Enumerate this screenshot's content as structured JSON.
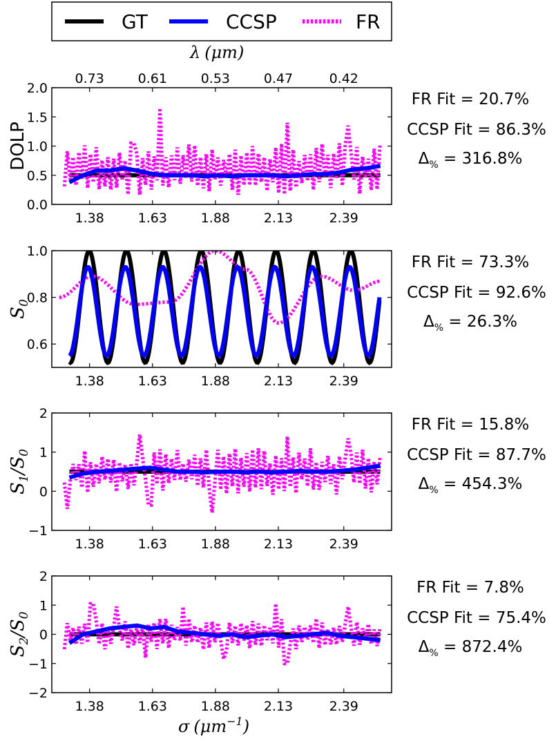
{
  "legend": {
    "items": [
      {
        "label": "GT",
        "color": "#000000",
        "style": "solid"
      },
      {
        "label": "CCSP",
        "color": "#0000ff",
        "style": "solid"
      },
      {
        "label": "FR",
        "color": "#ff00ff",
        "style": "dotted"
      }
    ]
  },
  "top_axis": {
    "label_symbol": "λ",
    "label_unit": "(μm)",
    "ticks": [
      "0.73",
      "0.61",
      "0.53",
      "0.47",
      "0.42"
    ]
  },
  "bottom_axis": {
    "label_symbol": "σ",
    "label_unit": "(μm",
    "label_exp": "−1",
    "label_close": ")"
  },
  "chart_data": [
    {
      "type": "line",
      "id": "dolp",
      "ylabel": "DOLP",
      "ylim": [
        0,
        2
      ],
      "yticks": [
        "0.0",
        "0.5",
        "1.0",
        "1.5",
        "2.0"
      ],
      "xlim": [
        1.23,
        2.58
      ],
      "xticks": [
        1.38,
        1.63,
        1.88,
        2.13,
        2.39
      ],
      "xtick_labels": [
        "1.38",
        "1.63",
        "1.88",
        "2.13",
        "2.39"
      ],
      "gt": {
        "type": "const",
        "value": 0.5
      },
      "ccsp": {
        "type": "flat",
        "values": [
          0.38,
          0.5,
          0.58,
          0.58,
          0.62,
          0.58,
          0.53,
          0.5,
          0.5,
          0.5,
          0.48,
          0.5,
          0.48,
          0.5,
          0.5,
          0.5,
          0.48,
          0.5,
          0.52,
          0.52,
          0.55,
          0.6,
          0.62,
          0.66
        ]
      },
      "fr": {
        "type": "noisy",
        "center": 0.6,
        "amp": 0.45,
        "bursts": [
          [
            1.55,
            1.05
          ],
          [
            1.66,
            1.65
          ],
          [
            2.17,
            1.4
          ],
          [
            2.41,
            1.35
          ]
        ]
      },
      "annotations": {
        "fr_fit": "FR Fit = 20.7%",
        "ccsp_fit": "CCSP Fit = 86.3%",
        "delta_symbol": "Δ",
        "delta_sub": "%",
        "delta_value": " = 316.8%"
      }
    },
    {
      "type": "line",
      "id": "s0",
      "ylabel_main": "S",
      "ylabel_sub": "0",
      "ylim": [
        0.5,
        1.0
      ],
      "yticks": [
        "0.6",
        "0.8",
        "1.0"
      ],
      "ytick_values": [
        0.6,
        0.8,
        1.0
      ],
      "xlim": [
        1.23,
        2.58
      ],
      "xticks": [
        1.38,
        1.63,
        1.88,
        2.13,
        2.39
      ],
      "xtick_labels": [
        "1.38",
        "1.63",
        "1.88",
        "2.13",
        "2.39"
      ],
      "gt": {
        "type": "osc",
        "mean": 0.76,
        "amp": 0.24,
        "period": 0.1485,
        "phase0": 1.23
      },
      "ccsp": {
        "type": "osc",
        "mean": 0.74,
        "amp": 0.19,
        "period": 0.1485,
        "phase0": 1.225
      },
      "fr": {
        "type": "slowosc",
        "points": [
          [
            1.26,
            0.8
          ],
          [
            1.39,
            0.89
          ],
          [
            1.56,
            0.77
          ],
          [
            1.7,
            0.78
          ],
          [
            1.88,
            1.0
          ],
          [
            2.0,
            0.92
          ],
          [
            2.13,
            0.69
          ],
          [
            2.3,
            0.89
          ],
          [
            2.43,
            0.83
          ],
          [
            2.54,
            0.87
          ]
        ]
      },
      "annotations": {
        "fr_fit": "FR Fit = 73.3%",
        "ccsp_fit": "CCSP Fit = 92.6%",
        "delta_symbol": "Δ",
        "delta_sub": "%",
        "delta_value": " = 26.3%"
      }
    },
    {
      "type": "line",
      "id": "s1",
      "ylabel_main": "S",
      "ylabel_sub": "1",
      "ylabel_tail": "/S",
      "ylabel_tail_sub": "0",
      "ylim": [
        -1,
        2
      ],
      "yticks": [
        "−1",
        "0",
        "1",
        "2"
      ],
      "ytick_values": [
        -1,
        0,
        1,
        2
      ],
      "xlim": [
        1.23,
        2.58
      ],
      "xticks": [
        1.38,
        1.63,
        1.88,
        2.13,
        2.39
      ],
      "xtick_labels": [
        "1.38",
        "1.63",
        "1.88",
        "2.13",
        "2.39"
      ],
      "gt": {
        "type": "const",
        "value": 0.5
      },
      "ccsp": {
        "type": "flat",
        "values": [
          0.35,
          0.45,
          0.5,
          0.52,
          0.55,
          0.58,
          0.6,
          0.55,
          0.5,
          0.5,
          0.48,
          0.5,
          0.5,
          0.48,
          0.5,
          0.48,
          0.5,
          0.52,
          0.5,
          0.5,
          0.52,
          0.55,
          0.6,
          0.65
        ]
      },
      "fr": {
        "type": "noisy",
        "center": 0.5,
        "amp": 0.6,
        "bursts": [
          [
            1.29,
            -0.45
          ],
          [
            1.58,
            1.45
          ],
          [
            1.62,
            -0.35
          ],
          [
            1.87,
            -0.55
          ],
          [
            2.17,
            1.4
          ],
          [
            2.41,
            1.35
          ]
        ]
      },
      "annotations": {
        "fr_fit": "FR Fit = 15.8%",
        "ccsp_fit": "CCSP Fit = 87.7%",
        "delta_symbol": "Δ",
        "delta_sub": "%",
        "delta_value": " = 454.3%"
      }
    },
    {
      "type": "line",
      "id": "s2",
      "ylabel_main": "S",
      "ylabel_sub": "2",
      "ylabel_tail": "/S",
      "ylabel_tail_sub": "0",
      "ylim": [
        -2,
        2
      ],
      "yticks": [
        "−2",
        "−1",
        "0",
        "1",
        "2"
      ],
      "ytick_values": [
        -2,
        -1,
        0,
        1,
        2
      ],
      "xlim": [
        1.23,
        2.58
      ],
      "xticks": [
        1.38,
        1.63,
        1.88,
        2.13,
        2.39
      ],
      "xtick_labels": [
        "1.38",
        "1.63",
        "1.88",
        "2.13",
        "2.39"
      ],
      "gt": {
        "type": "const",
        "value": 0.0
      },
      "ccsp": {
        "type": "flat",
        "values": [
          -0.3,
          0.0,
          0.1,
          0.2,
          0.25,
          0.3,
          0.2,
          0.25,
          0.1,
          0.05,
          0.0,
          -0.05,
          0.0,
          -0.1,
          -0.05,
          0.0,
          -0.1,
          -0.05,
          0.0,
          0.05,
          -0.05,
          -0.1,
          -0.15,
          -0.2
        ]
      },
      "fr": {
        "type": "noisy",
        "center": 0.0,
        "amp": 0.55,
        "bursts": [
          [
            1.39,
            1.05
          ],
          [
            1.49,
            0.95
          ],
          [
            1.6,
            -0.8
          ],
          [
            1.75,
            0.95
          ],
          [
            1.91,
            -0.85
          ],
          [
            2.12,
            1.05
          ],
          [
            2.16,
            -1.0
          ],
          [
            2.41,
            0.95
          ]
        ]
      },
      "annotations": {
        "fr_fit": "FR Fit = 7.8%",
        "ccsp_fit": "CCSP Fit = 75.4%",
        "delta_symbol": "Δ",
        "delta_sub": "%",
        "delta_value": " = 872.4%"
      }
    }
  ]
}
